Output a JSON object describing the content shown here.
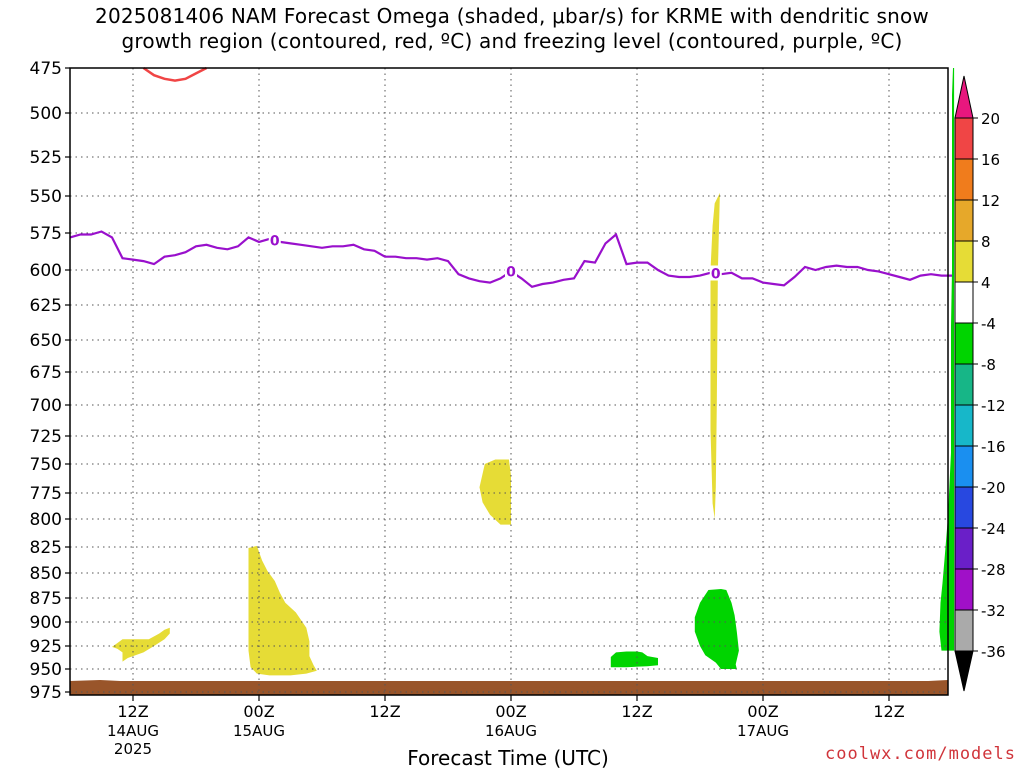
{
  "title": {
    "line1": "2025081406 NAM Forecast Omega (shaded, μbar/s) for KRME with dendritic snow",
    "line2": "growth region (contoured, red, ºC) and freezing level (contoured, purple, ºC)"
  },
  "credit": "coolwx.com/models",
  "chart_data": {
    "type": "heatmap",
    "xlabel": "Forecast Time (UTC)",
    "x_ticks": [
      {
        "hour": 6,
        "label": "12Z",
        "date": "14AUG",
        "year": "2025"
      },
      {
        "hour": 18,
        "label": "00Z",
        "date": "15AUG",
        "year": ""
      },
      {
        "hour": 30,
        "label": "12Z",
        "date": "",
        "year": ""
      },
      {
        "hour": 42,
        "label": "00Z",
        "date": "16AUG",
        "year": ""
      },
      {
        "hour": 54,
        "label": "12Z",
        "date": "",
        "year": ""
      },
      {
        "hour": 66,
        "label": "00Z",
        "date": "17AUG",
        "year": ""
      },
      {
        "hour": 78,
        "label": "12Z",
        "date": "",
        "year": ""
      }
    ],
    "x_range_hours": [
      0,
      84
    ],
    "y_ticks": [
      "475",
      "500",
      "525",
      "550",
      "575",
      "600",
      "625",
      "650",
      "675",
      "700",
      "725",
      "750",
      "775",
      "800",
      "825",
      "850",
      "875",
      "900",
      "925",
      "950",
      "975"
    ],
    "y_range_mb": [
      475,
      975
    ],
    "colorbar": {
      "labels": [
        "20",
        "16",
        "12",
        "8",
        "4",
        "-4",
        "-8",
        "-12",
        "-16",
        "-20",
        "-24",
        "-28",
        "-32",
        "-36"
      ],
      "colors": [
        "#e8177e",
        "#f04545",
        "#f07c1c",
        "#e6a82a",
        "#e6dc36",
        "#ffffff",
        "#00d400",
        "#17b687",
        "#17b7c9",
        "#1a8ff0",
        "#2848e0",
        "#6a1fc8",
        "#a010c8",
        "#aaaaaa",
        "#000000"
      ]
    },
    "freezing_level": {
      "label": "0",
      "color": "#9910cc",
      "hours": [
        0,
        1,
        2,
        3,
        4,
        5,
        6,
        7,
        8,
        9,
        10,
        11,
        12,
        13,
        14,
        15,
        16,
        17,
        18,
        19,
        20,
        21,
        22,
        23,
        24,
        25,
        26,
        27,
        28,
        29,
        30,
        31,
        32,
        33,
        34,
        35,
        36,
        37,
        38,
        39,
        40,
        41,
        42,
        43,
        44,
        45,
        46,
        47,
        48,
        49,
        50,
        51,
        52,
        53,
        54,
        55,
        56,
        57,
        58,
        59,
        60,
        61,
        62,
        63,
        64,
        65,
        66,
        67,
        68,
        69,
        70,
        71,
        72,
        73,
        74,
        75,
        76,
        77,
        78,
        79,
        80,
        81,
        82,
        83,
        84
      ],
      "mb": [
        578,
        576,
        576,
        574,
        578,
        592,
        593,
        594,
        596,
        591,
        590,
        588,
        584,
        583,
        585,
        586,
        584,
        578,
        581,
        579,
        581,
        582,
        583,
        584,
        585,
        584,
        584,
        583,
        586,
        587,
        591,
        591,
        592,
        592,
        593,
        592,
        594,
        603,
        606,
        608,
        609,
        606,
        601,
        606,
        612,
        610,
        609,
        607,
        606,
        594,
        595,
        582,
        576,
        596,
        595,
        595,
        600,
        604,
        605,
        605,
        604,
        602,
        603,
        602,
        606,
        606,
        609,
        610,
        611,
        605,
        598,
        600,
        598,
        597,
        598,
        598,
        600,
        601,
        603,
        605,
        607,
        604,
        603,
        604,
        604
      ],
      "labels_at_hours": [
        19.5,
        42,
        61.5
      ]
    },
    "dgz_contour": {
      "color": "#f04545",
      "hours": [
        7,
        8,
        9,
        10,
        11,
        12,
        13
      ],
      "mb": [
        475,
        479,
        481,
        482,
        481,
        478,
        475
      ]
    },
    "omega_regions": [
      {
        "value_range": [
          4,
          8
        ],
        "color": "#e6dc36",
        "label": "yellow-1"
      },
      {
        "value_range": [
          4,
          8
        ],
        "color": "#e6dc36",
        "label": "yellow-2"
      },
      {
        "value_range": [
          4,
          8
        ],
        "color": "#e6dc36",
        "label": "yellow-3"
      },
      {
        "value_range": [
          4,
          8
        ],
        "color": "#e6dc36",
        "label": "yellow-4"
      },
      {
        "value_range": [
          -8,
          -4
        ],
        "color": "#00d400",
        "label": "green-1"
      },
      {
        "value_range": [
          -8,
          -4
        ],
        "color": "#00d400",
        "label": "green-2"
      },
      {
        "value_range": [
          -8,
          -4
        ],
        "color": "#00d400",
        "label": "green-3"
      }
    ],
    "ground_color": "#99552a"
  }
}
